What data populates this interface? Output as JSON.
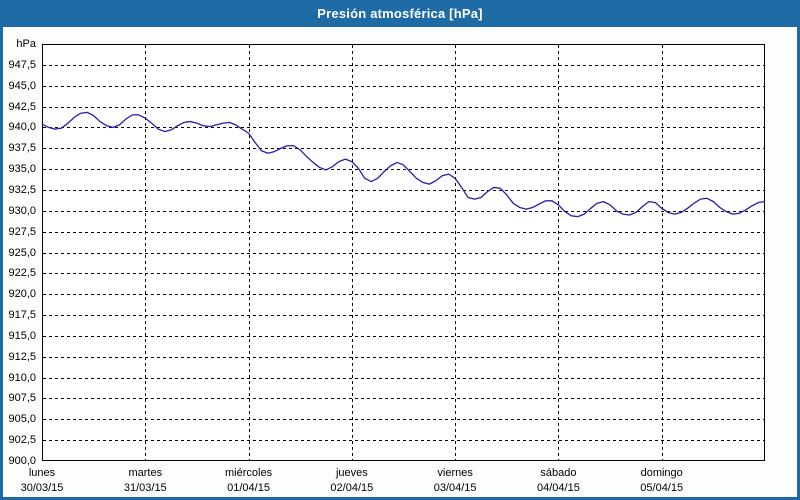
{
  "window": {
    "title": "Presión atmosférica [hPa]"
  },
  "colors": {
    "frame_blue": "#1e6aa5",
    "titlebar_blue": "#1f6ca8",
    "titlebar_dot_blue": "#17618e",
    "title_text": "#ffffff",
    "page_background": "#fcfefc",
    "plot_background": "#fefffe",
    "grid_and_axes": "#000000",
    "tick_text": "#000000",
    "line_blue": "#2121ad"
  },
  "chart_data": {
    "type": "line",
    "title": "Presión atmosférica [hPa]",
    "ylabel_unit": "hPa",
    "ylim": [
      900,
      950
    ],
    "ytick_step": 2.5,
    "ytick_label_max": 947.5,
    "decimal_separator": ",",
    "grid_style": "dashed",
    "legend_position": "none",
    "x_axis": {
      "days": [
        {
          "name": "lunes",
          "date": "30/03/15"
        },
        {
          "name": "martes",
          "date": "31/03/15"
        },
        {
          "name": "miércoles",
          "date": "01/04/15"
        },
        {
          "name": "jueves",
          "date": "02/04/15"
        },
        {
          "name": "viernes",
          "date": "03/04/15"
        },
        {
          "name": "sábado",
          "date": "04/04/15"
        },
        {
          "name": "domingo",
          "date": "05/04/15"
        }
      ]
    },
    "series": [
      {
        "name": "Presión atmosférica",
        "color": "#2121ad",
        "sample_interval_hours": 1.5,
        "values": [
          940.4,
          940.0,
          939.8,
          939.9,
          940.5,
          941.2,
          941.7,
          941.8,
          941.4,
          940.7,
          940.2,
          940.0,
          940.3,
          941.0,
          941.5,
          941.5,
          941.1,
          940.5,
          939.8,
          939.5,
          939.7,
          940.2,
          940.6,
          940.7,
          940.5,
          940.2,
          940.1,
          940.3,
          940.5,
          940.6,
          940.3,
          939.8,
          939.3,
          938.2,
          937.2,
          936.9,
          937.1,
          937.5,
          937.8,
          937.8,
          937.3,
          936.5,
          935.8,
          935.2,
          934.9,
          935.3,
          935.9,
          936.2,
          935.9,
          935.1,
          933.9,
          933.5,
          933.9,
          934.7,
          935.4,
          935.8,
          935.5,
          934.7,
          933.9,
          933.4,
          933.2,
          933.6,
          934.2,
          934.4,
          933.9,
          932.8,
          931.6,
          931.4,
          931.6,
          932.3,
          932.8,
          932.7,
          931.9,
          930.9,
          930.4,
          930.2,
          930.4,
          930.8,
          931.2,
          931.2,
          930.7,
          929.9,
          929.4,
          929.3,
          929.6,
          930.3,
          930.9,
          931.1,
          930.7,
          930.0,
          929.6,
          929.5,
          929.8,
          930.5,
          931.1,
          931.0,
          930.3,
          929.8,
          929.6,
          929.8,
          930.3,
          930.9,
          931.4,
          931.5,
          931.1,
          930.4,
          929.9,
          929.6,
          929.7,
          930.1,
          930.6,
          931.0,
          931.1
        ]
      }
    ]
  }
}
